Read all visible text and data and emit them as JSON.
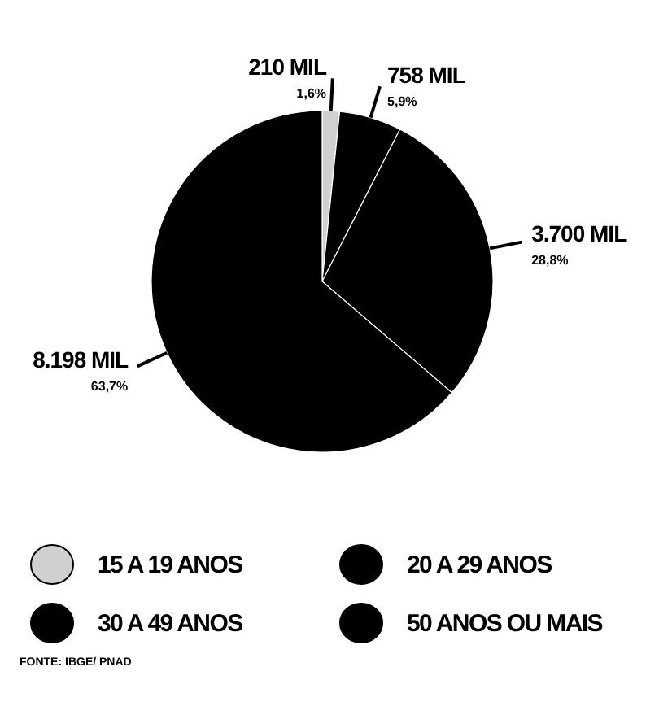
{
  "chart_data": {
    "type": "pie",
    "categories": [
      "15 A 19 ANOS",
      "20 A 29 ANOS",
      "30 A 49 ANOS",
      "50 ANOS OU MAIS"
    ],
    "values": [
      210,
      758,
      3700,
      8198
    ],
    "value_labels": [
      "210 MIL",
      "758 MIL",
      "3.700 MIL",
      "8.198 MIL"
    ],
    "colors": [
      "#d0d0d0",
      "#000000",
      "#000000",
      "#000000"
    ],
    "annotations": [
      "1,6%",
      "5,9%",
      "28,8%",
      "63,7%",
      "FONTE: IBGE/ PNAD"
    ],
    "legend": "bottom"
  }
}
